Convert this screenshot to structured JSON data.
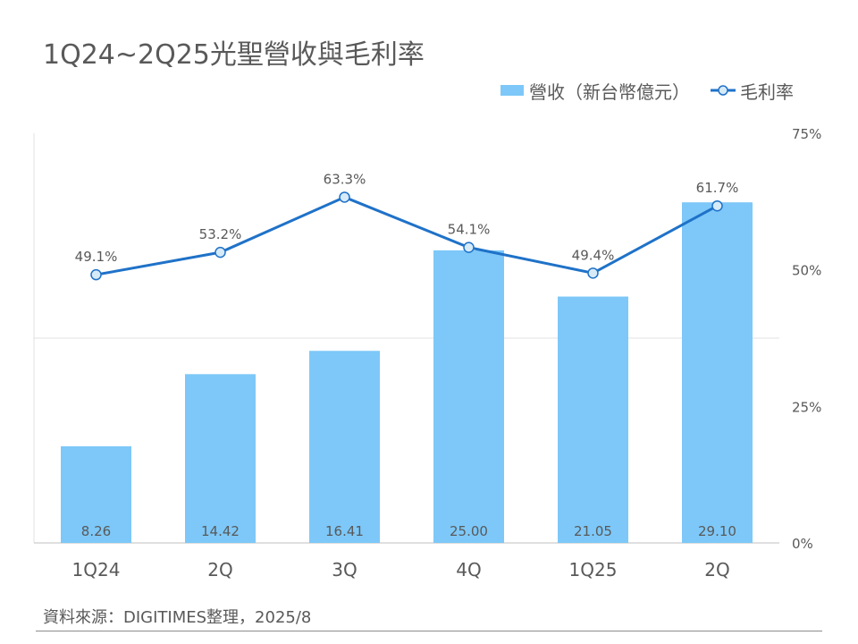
{
  "title": "1Q24~2Q25光聖營收與毛利率",
  "source": "資料來源：DIGITIMES整理，2025/8",
  "colors": {
    "bar": "#7dc8f8",
    "line": "#1f72c8",
    "marker_fill": "#d6eaf8",
    "grid": "#e0e0e0",
    "text": "#595959"
  },
  "chart_data": {
    "type": "bar",
    "categories": [
      "1Q24",
      "2Q",
      "3Q",
      "4Q",
      "1Q25",
      "2Q"
    ],
    "series": [
      {
        "name": "營收（新台幣億元）",
        "type": "bar",
        "axis": "left",
        "values": [
          8.26,
          14.42,
          16.41,
          25.0,
          21.05,
          29.1
        ],
        "labels": [
          "8.26",
          "14.42",
          "16.41",
          "25.00",
          "21.05",
          "29.10"
        ]
      },
      {
        "name": "毛利率",
        "type": "line",
        "axis": "right",
        "values": [
          49.1,
          53.2,
          63.3,
          54.1,
          49.4,
          61.7
        ],
        "labels": [
          "49.1%",
          "53.2%",
          "63.3%",
          "54.1%",
          "49.4%",
          "61.7%"
        ]
      }
    ],
    "left_ylim": [
      0,
      35
    ],
    "right_ylim": [
      0,
      75
    ],
    "right_ticks": [
      "0%",
      "25%",
      "50%",
      "75%"
    ],
    "gridlines": [
      17.5
    ],
    "legend_position": "top-right"
  }
}
